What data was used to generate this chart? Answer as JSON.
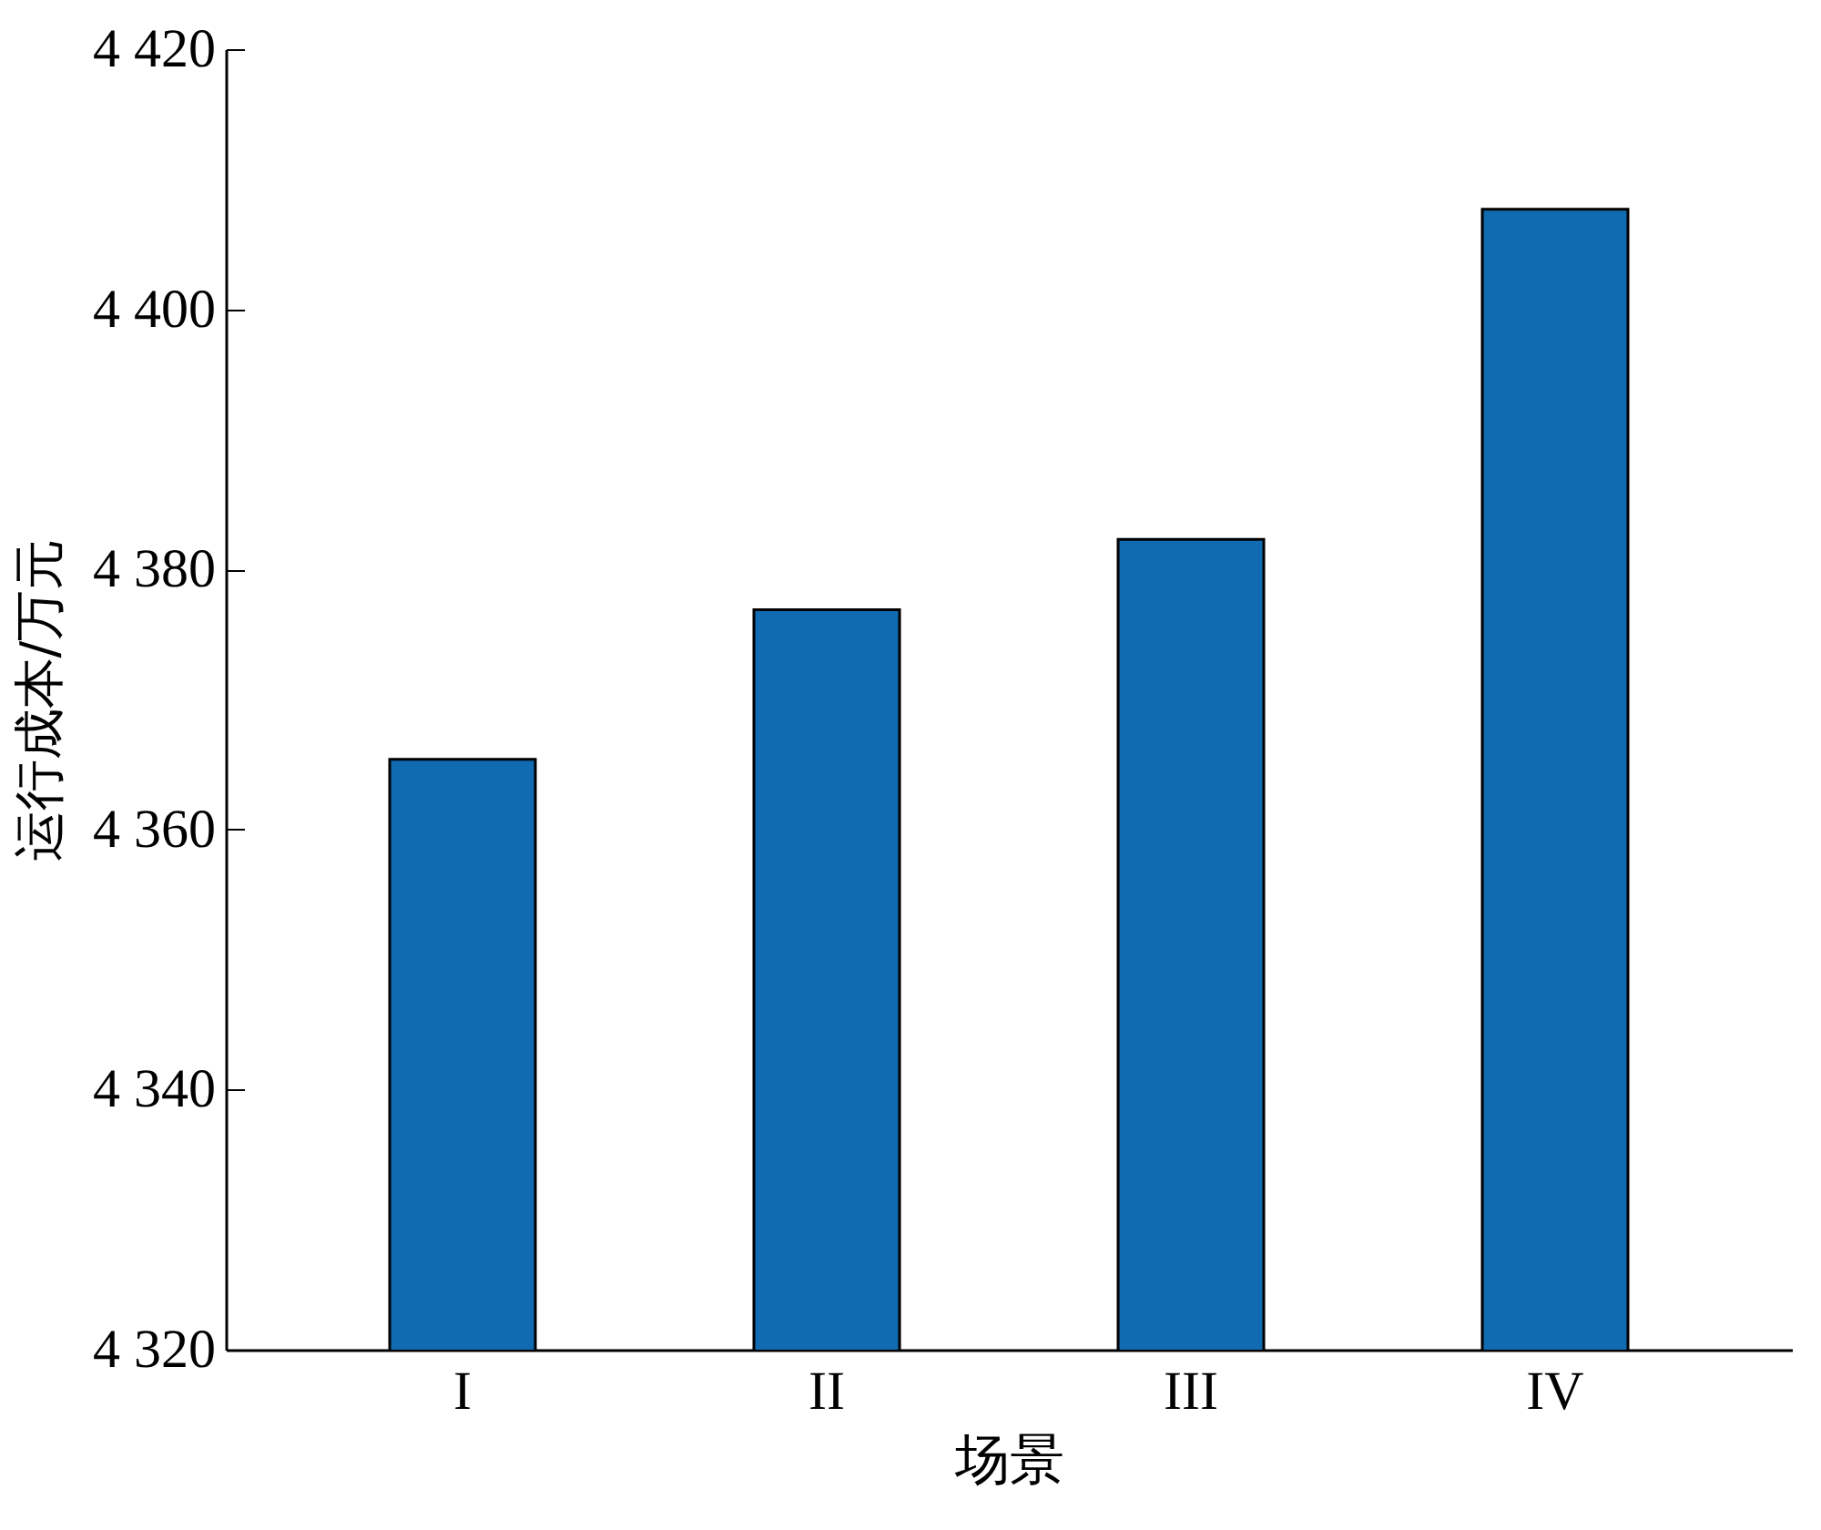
{
  "chart_data": {
    "type": "bar",
    "xlabel": "场景",
    "ylabel": "运行成本/万元",
    "categories": [
      "I",
      "II",
      "III",
      "IV"
    ],
    "values": [
      4365.4,
      4376.9,
      4382.3,
      4407.7
    ],
    "color": "#106bb0",
    "ylim": [
      4320,
      4420
    ],
    "yticks": [
      {
        "value": 4320,
        "label": "4 320"
      },
      {
        "value": 4340,
        "label": "4 340"
      },
      {
        "value": 4360,
        "label": "4 360"
      },
      {
        "value": 4380,
        "label": "4 380"
      },
      {
        "value": 4400,
        "label": "4 400"
      },
      {
        "value": 4420,
        "label": "4 420"
      }
    ],
    "data_labels": false
  }
}
